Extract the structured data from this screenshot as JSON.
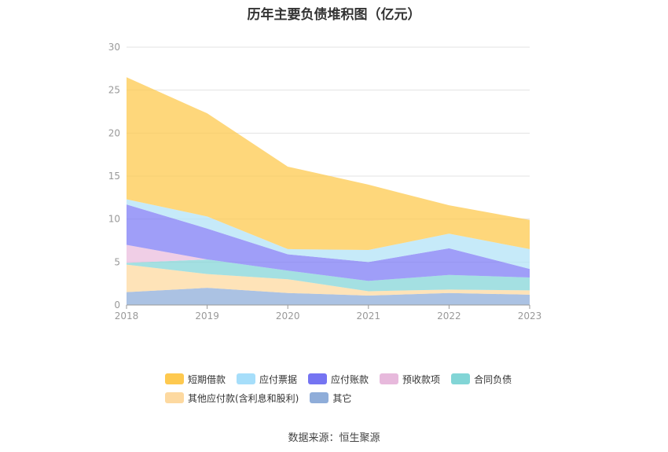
{
  "chart_data": {
    "type": "area",
    "stacked": true,
    "title": "历年主要负债堆积图（亿元）",
    "x": [
      "2018",
      "2019",
      "2020",
      "2021",
      "2022",
      "2023"
    ],
    "ylim": [
      0,
      30
    ],
    "yticks": [
      0,
      5,
      10,
      15,
      20,
      25,
      30
    ],
    "grid": true,
    "legend_position": "bottom",
    "series": [
      {
        "name": "其它",
        "color": "#8fadd9",
        "values": [
          1.5,
          2.0,
          1.4,
          1.1,
          1.4,
          1.2
        ]
      },
      {
        "name": "其他应付款(含利息和股利)",
        "color": "#fdd9a0",
        "values": [
          3.2,
          1.6,
          1.6,
          0.5,
          0.4,
          0.5
        ]
      },
      {
        "name": "合同负债",
        "color": "#85d6d8",
        "values": [
          0.2,
          1.7,
          1.0,
          1.2,
          1.7,
          1.5
        ]
      },
      {
        "name": "预收款项",
        "color": "#ebbede",
        "values": [
          2.1,
          0.0,
          0.0,
          0.0,
          0.0,
          0.0
        ]
      },
      {
        "name": "应付账款",
        "color": "#7f7ef5",
        "values": [
          4.7,
          3.6,
          1.9,
          2.2,
          3.1,
          1.0
        ]
      },
      {
        "name": "应付票据",
        "color": "#b3e3f7",
        "values": [
          0.6,
          1.4,
          0.6,
          1.4,
          1.7,
          2.3
        ]
      },
      {
        "name": "短期借款",
        "color": "#fec94f",
        "values": [
          14.2,
          12.0,
          9.6,
          7.6,
          3.3,
          3.4
        ]
      }
    ],
    "legend_order": [
      "短期借款",
      "应付票据",
      "应付账款",
      "预收款项",
      "合同负债",
      "其他应付款(含利息和股利)",
      "其它"
    ],
    "source": "数据来源：恒生聚源"
  }
}
